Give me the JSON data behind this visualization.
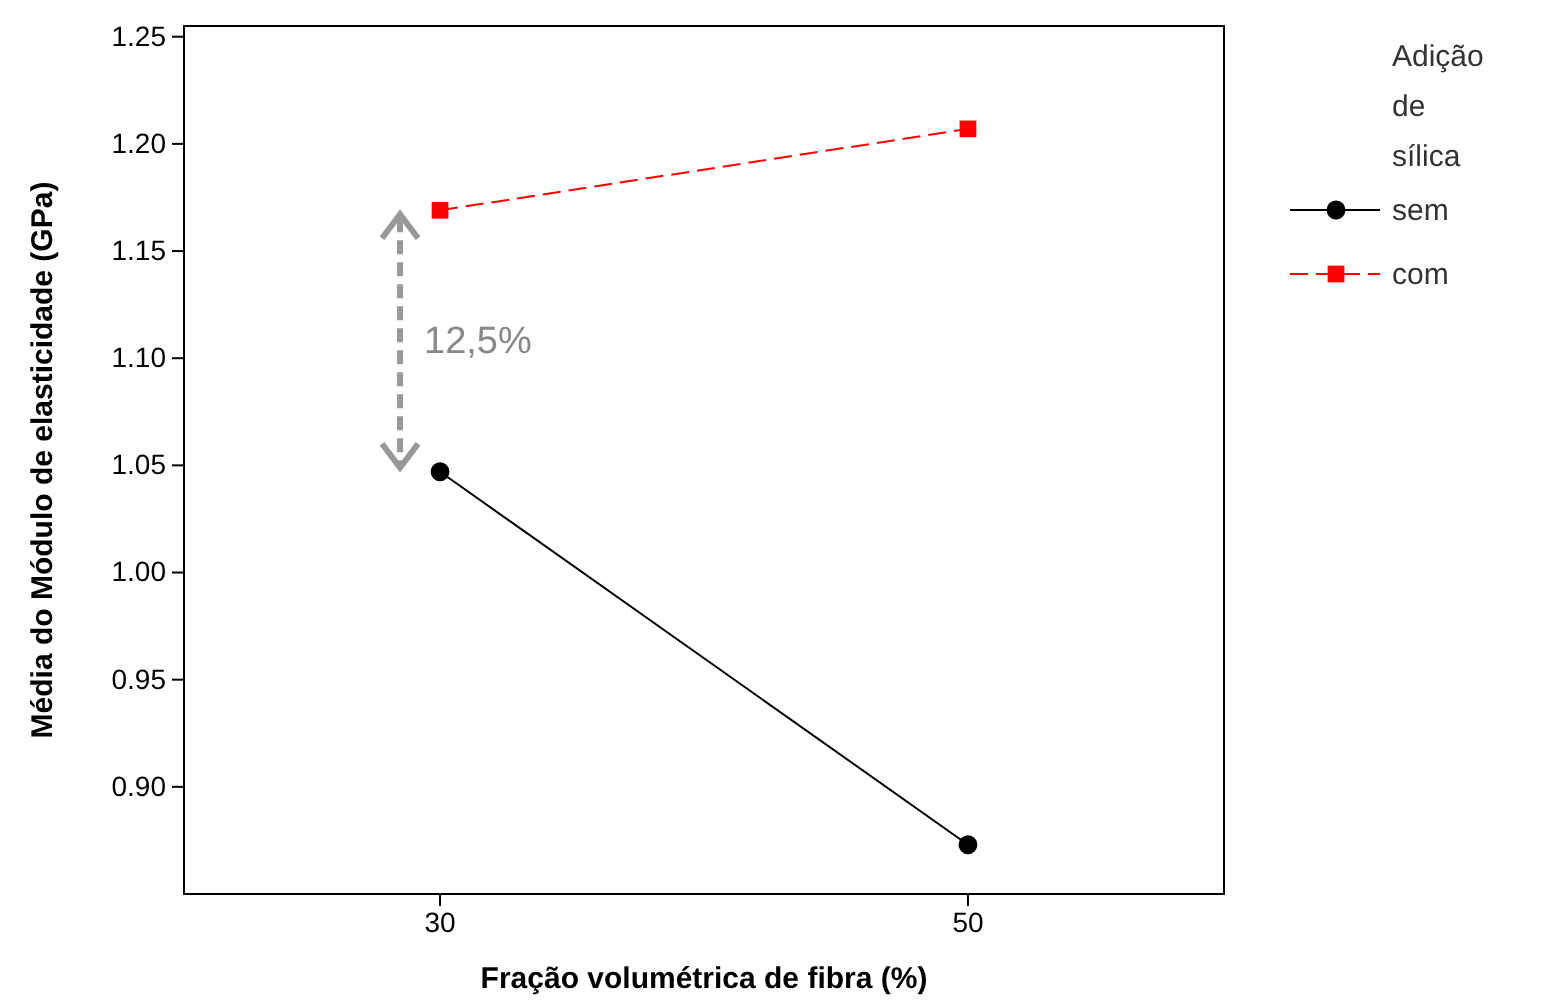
{
  "chart_data": {
    "type": "line",
    "xlabel": "Fração volumétrica de fibra (%)",
    "ylabel": "Média do Módulo de elasticidade (GPa)",
    "legend_title": "Adição de sílica",
    "legend": "right",
    "grid": false,
    "categories": [
      "30",
      "50"
    ],
    "ylim": [
      0.85,
      1.255
    ],
    "yticks": [
      {
        "value": 0.9,
        "label": "0.90"
      },
      {
        "value": 0.95,
        "label": "0.95"
      },
      {
        "value": 1.0,
        "label": "1.00"
      },
      {
        "value": 1.05,
        "label": "1.05"
      },
      {
        "value": 1.1,
        "label": "1.10"
      },
      {
        "value": 1.15,
        "label": "1.15"
      },
      {
        "value": 1.2,
        "label": "1.20"
      },
      {
        "value": 1.25,
        "label": "1.25"
      }
    ],
    "series": [
      {
        "name": "sem",
        "color": "#000000",
        "values": [
          1.047,
          0.873
        ],
        "marker": "circle",
        "line_style": "solid"
      },
      {
        "name": "com",
        "color": "#ff0000",
        "values": [
          1.169,
          1.207
        ],
        "marker": "square",
        "line_style": "dashed"
      }
    ],
    "annotations": [
      "12,5%"
    ]
  }
}
